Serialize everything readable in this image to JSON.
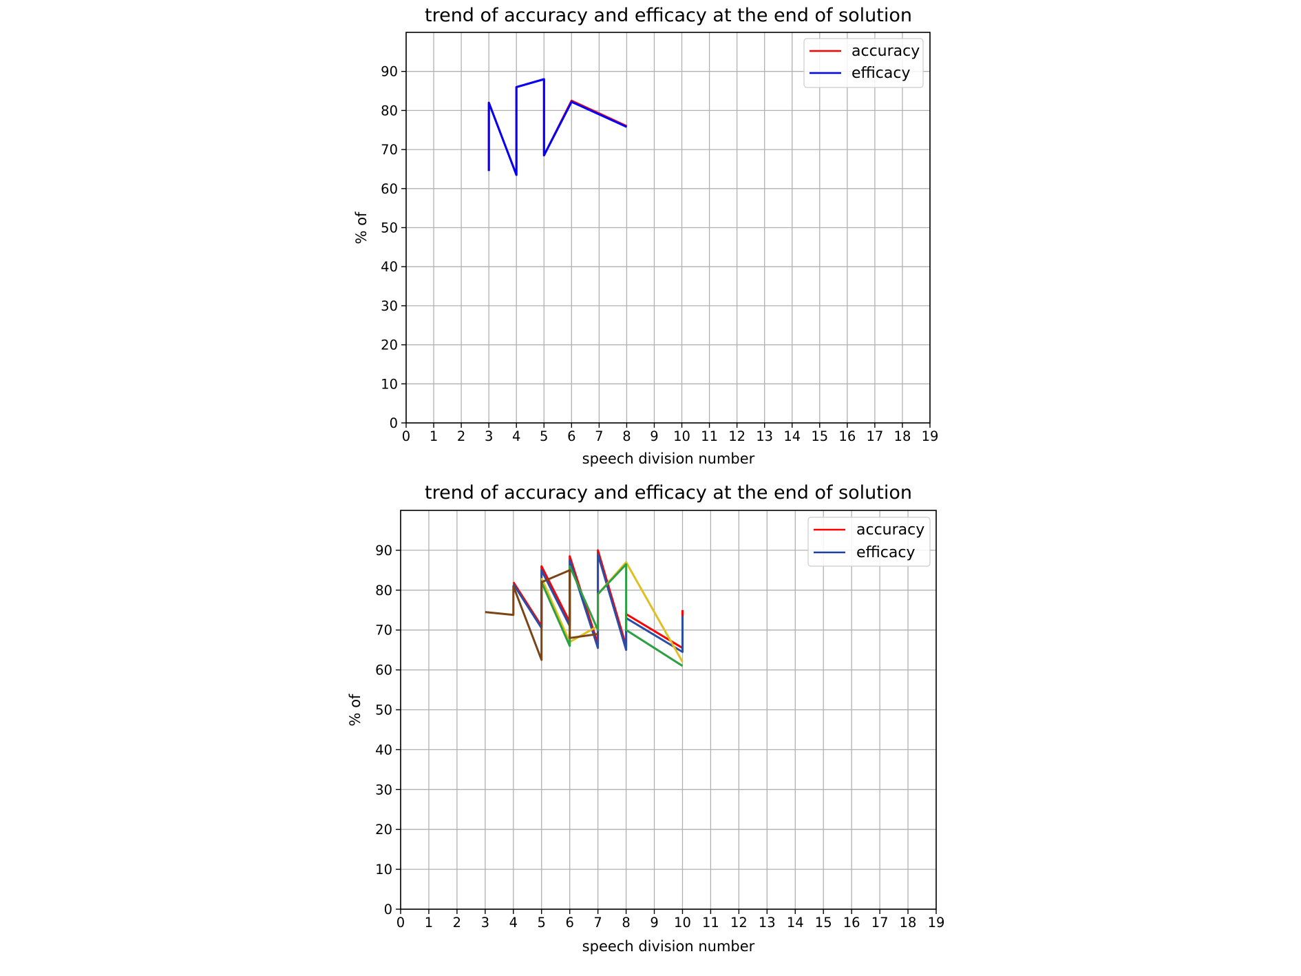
{
  "chart_data": [
    {
      "type": "line",
      "title": "trend of accuracy and efficacy at the end of solution",
      "xlabel": "speech division number",
      "ylabel": "% of",
      "xlim": [
        0,
        19
      ],
      "ylim": [
        0,
        100
      ],
      "xticks": [
        "0",
        "1",
        "2",
        "3",
        "4",
        "5",
        "6",
        "7",
        "8",
        "9",
        "10",
        "11",
        "12",
        "13",
        "14",
        "15",
        "16",
        "17",
        "18",
        "19"
      ],
      "yticks": [
        "0",
        "10",
        "20",
        "30",
        "40",
        "50",
        "60",
        "70",
        "80",
        "90"
      ],
      "grid": true,
      "legend_position": "top-right",
      "legend": [
        {
          "label": "accuracy",
          "color": "#ff0000"
        },
        {
          "label": "efficacy",
          "color": "#0000ff"
        }
      ],
      "series": [
        {
          "name": "accuracy",
          "color": "#ff0000",
          "x": [
            3,
            3,
            4,
            4,
            5,
            5,
            6,
            8
          ],
          "y": [
            64.5,
            82,
            63.5,
            86,
            88,
            68.5,
            82.5,
            76
          ]
        },
        {
          "name": "efficacy",
          "color": "#0000ff",
          "x": [
            3,
            3,
            4,
            4,
            5,
            5,
            6,
            8
          ],
          "y": [
            64.5,
            82,
            63.5,
            86,
            88,
            68.5,
            82.2,
            75.8
          ]
        }
      ]
    },
    {
      "type": "line",
      "title": "trend of accuracy and efficacy at the end of solution",
      "xlabel": "speech division number",
      "ylabel": "% of",
      "xlim": [
        0,
        19
      ],
      "ylim": [
        0,
        100
      ],
      "xticks": [
        "0",
        "1",
        "2",
        "3",
        "4",
        "5",
        "6",
        "7",
        "8",
        "9",
        "10",
        "11",
        "12",
        "13",
        "14",
        "15",
        "16",
        "17",
        "18",
        "19"
      ],
      "yticks": [
        "0",
        "10",
        "20",
        "30",
        "40",
        "50",
        "60",
        "70",
        "80",
        "90"
      ],
      "grid": true,
      "legend_position": "top-right",
      "legend": [
        {
          "label": "accuracy",
          "color": "#ff0000"
        },
        {
          "label": "efficacy",
          "color": "#1f3fa0"
        }
      ],
      "series": [
        {
          "color": "#ff0000",
          "x": [
            4,
            5,
            5,
            6,
            6,
            7,
            7,
            8,
            8,
            10,
            10
          ],
          "y": [
            82,
            71,
            86,
            72,
            88.5,
            66.5,
            90,
            66,
            74,
            65.5,
            75
          ]
        },
        {
          "color": "#2a4da8",
          "x": [
            4,
            5,
            5,
            6,
            6,
            7,
            7,
            8,
            8,
            10,
            10
          ],
          "y": [
            81.5,
            70.5,
            85,
            71,
            87.5,
            65.5,
            89,
            65,
            73,
            64.5,
            73.5
          ]
        },
        {
          "color": "#e0c020",
          "x": [
            5,
            6,
            7,
            7,
            8,
            10
          ],
          "y": [
            83,
            67,
            71,
            79,
            87,
            62
          ]
        },
        {
          "color": "#2ea043",
          "x": [
            5,
            6,
            6,
            7,
            7,
            8,
            8,
            10
          ],
          "y": [
            82,
            66,
            86,
            70,
            79,
            86.5,
            70,
            61
          ]
        },
        {
          "color": "#7a4516",
          "x": [
            3,
            4,
            4,
            5,
            5,
            6,
            6,
            7
          ],
          "y": [
            74.5,
            73.8,
            81,
            62.5,
            82,
            85,
            68,
            69
          ]
        }
      ]
    }
  ]
}
